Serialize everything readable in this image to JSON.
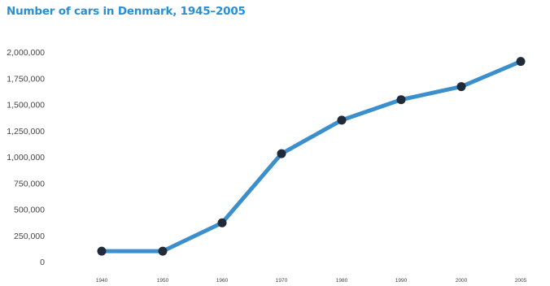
{
  "chart_data": {
    "type": "line",
    "title": "Number of cars in Denmark, 1945–2005",
    "xlabel": "",
    "ylabel": "",
    "x": [
      1940,
      1950,
      1960,
      1970,
      1980,
      1990,
      2000,
      2005
    ],
    "x_tick_labels": [
      "1940",
      "1950",
      "1960",
      "1970",
      "1980",
      "1990",
      "2000",
      "2005"
    ],
    "series": [
      {
        "values": [
          100000,
          100000,
          370000,
          1030000,
          1350000,
          1545000,
          1670000,
          1910000
        ]
      }
    ],
    "ylim": [
      0,
      2000000
    ],
    "y_ticks": [
      0,
      250000,
      500000,
      750000,
      1000000,
      1250000,
      1500000,
      1750000,
      2000000
    ],
    "y_tick_labels": [
      "0",
      "250,000",
      "500,000",
      "750,000",
      "1,000,000",
      "1,250,000",
      "1,500,000",
      "1,750,000",
      "2,000,000"
    ],
    "grid": false,
    "legend": "none",
    "colors": {
      "line": "#3b8fcc",
      "marker": "#1f2b38",
      "title": "#2a8fd0",
      "text": "#444444"
    }
  }
}
